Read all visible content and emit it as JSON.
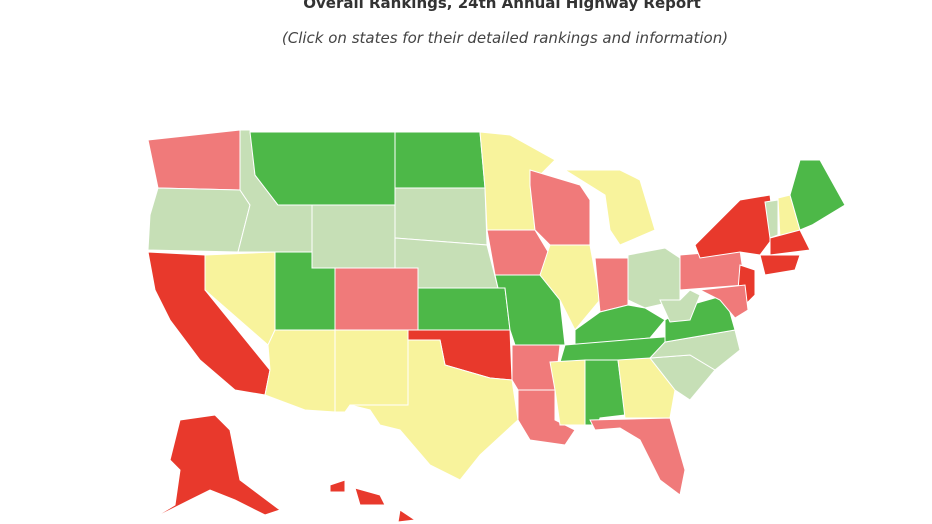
{
  "header": {
    "title": "Overall Rankings, 24th Annual Highway Report",
    "subtitle": "(Click on states for their detailed rankings and information)"
  }
}
